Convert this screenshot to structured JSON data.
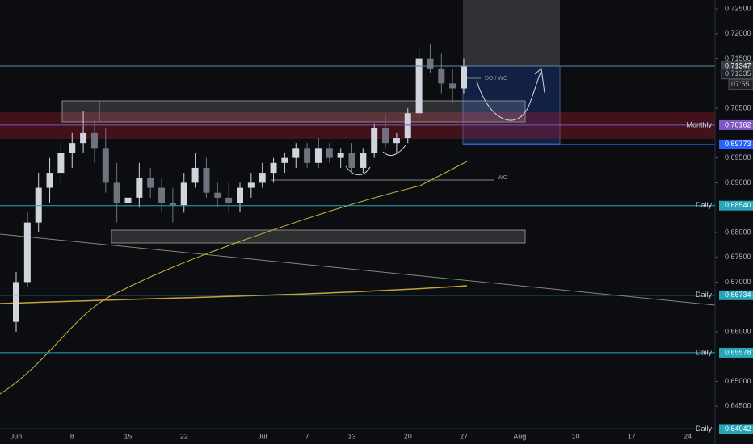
{
  "chart_data": {
    "type": "candlestick",
    "categories": [
      "Jun",
      null,
      null,
      null,
      null,
      "8",
      null,
      null,
      null,
      null,
      "15",
      null,
      null,
      null,
      null,
      "22",
      null,
      null,
      null,
      null,
      null,
      null,
      "Jul",
      null,
      null,
      null,
      "7",
      null,
      null,
      null,
      "13",
      null,
      null,
      null,
      null,
      "20",
      null,
      null,
      null,
      null,
      "27",
      null,
      null,
      null,
      null,
      "Aug",
      null,
      null,
      null,
      null,
      "10",
      null,
      null,
      null,
      null,
      "17",
      null,
      null,
      null,
      null,
      "24",
      null
    ],
    "open": [
      0.662,
      0.67,
      0.682,
      0.689,
      0.692,
      0.696,
      0.698,
      0.7,
      0.697,
      0.69,
      0.686,
      0.687,
      0.691,
      0.689,
      0.686,
      0.6855,
      0.69,
      0.693,
      0.688,
      0.687,
      0.686,
      0.689,
      0.69,
      0.692,
      0.694,
      0.695,
      0.697,
      0.694,
      0.697,
      0.695,
      0.696,
      0.693,
      0.696,
      0.701,
      0.698,
      0.699,
      0.704,
      0.715,
      0.713,
      0.71,
      0.709,
      null,
      null,
      null,
      null,
      null,
      null,
      null,
      null,
      null,
      null,
      null,
      null,
      null,
      null,
      null,
      null,
      null,
      null,
      null,
      null,
      null
    ],
    "high": [
      0.672,
      0.684,
      0.692,
      0.695,
      0.698,
      0.7,
      0.7045,
      0.7025,
      0.701,
      0.694,
      0.689,
      0.694,
      0.693,
      0.691,
      0.689,
      0.692,
      0.696,
      0.695,
      0.69,
      0.69,
      0.69,
      0.692,
      0.694,
      0.695,
      0.696,
      0.698,
      0.698,
      0.699,
      0.698,
      0.697,
      0.698,
      0.697,
      0.702,
      0.7035,
      0.7,
      0.705,
      0.717,
      0.718,
      0.716,
      0.713,
      0.715,
      null,
      null,
      null,
      null,
      null,
      null,
      null,
      null,
      null,
      null,
      null,
      null,
      null,
      null,
      null,
      null,
      null,
      null,
      null,
      null,
      null
    ],
    "low": [
      0.66,
      0.669,
      0.68,
      0.686,
      0.69,
      0.693,
      0.696,
      0.694,
      0.688,
      0.682,
      0.6775,
      0.685,
      0.687,
      0.684,
      0.682,
      0.684,
      0.689,
      0.687,
      0.685,
      0.684,
      0.684,
      0.687,
      0.689,
      0.69,
      0.692,
      0.693,
      0.693,
      0.693,
      0.694,
      0.693,
      0.692,
      0.692,
      0.695,
      0.697,
      0.696,
      0.698,
      0.703,
      0.712,
      0.708,
      0.706,
      0.708,
      null,
      null,
      null,
      null,
      null,
      null,
      null,
      null,
      null,
      null,
      null,
      null,
      null,
      null,
      null,
      null,
      null,
      null,
      null,
      null,
      null
    ],
    "close": [
      0.67,
      0.682,
      0.689,
      0.692,
      0.696,
      0.698,
      0.7,
      0.697,
      0.69,
      0.686,
      0.687,
      0.691,
      0.689,
      0.686,
      0.6855,
      0.69,
      0.693,
      0.688,
      0.687,
      0.686,
      0.689,
      0.69,
      0.692,
      0.694,
      0.695,
      0.697,
      0.694,
      0.697,
      0.695,
      0.696,
      0.693,
      0.696,
      0.701,
      0.698,
      0.699,
      0.704,
      0.715,
      0.713,
      0.71,
      0.709,
      0.71347,
      null,
      null,
      null,
      null,
      null,
      null,
      null,
      null,
      null,
      null,
      null,
      null,
      null,
      null,
      null,
      null,
      null,
      null,
      null,
      null,
      null
    ],
    "up_color": "#d1d4dc",
    "down_color": "#6f7380",
    "ylim": [
      0.6374,
      0.7268
    ],
    "yticks": [
      {
        "value": 0.725,
        "label": "0.72500"
      },
      {
        "value": 0.72,
        "label": "0.72000"
      },
      {
        "value": 0.715,
        "label": "0.71500"
      },
      {
        "value": 0.705,
        "label": "0.70500"
      },
      {
        "value": 0.695,
        "label": "0.69500"
      },
      {
        "value": 0.69,
        "label": "0.69000"
      },
      {
        "value": 0.68,
        "label": "0.68000"
      },
      {
        "value": 0.675,
        "label": "0.67500"
      },
      {
        "value": 0.67,
        "label": "0.67000"
      },
      {
        "value": 0.66,
        "label": "0.66000"
      },
      {
        "value": 0.65,
        "label": "0.65000"
      },
      {
        "value": 0.645,
        "label": "0.64500"
      }
    ],
    "current_price": {
      "value": 0.71347,
      "label": "0.71347"
    },
    "bid_price": {
      "value": 0.71335,
      "label": "0.71335"
    },
    "countdown": "07:55",
    "zone_price": {
      "value": 0.69773,
      "label": "0.69773"
    },
    "levels": [
      {
        "name": "Monthly",
        "value": 0.70162,
        "label": "0.70162",
        "color": "#7e57c2"
      },
      {
        "name": "Daily",
        "value": 0.6854,
        "label": "0.68540",
        "color": "#26a6b8"
      },
      {
        "name": "Daily",
        "value": 0.66734,
        "label": "0.66734",
        "color": "#26a6b8"
      },
      {
        "name": "Daily",
        "value": 0.65578,
        "label": "0.65578",
        "color": "#26a6b8"
      },
      {
        "name": "Daily",
        "value": 0.64042,
        "label": "0.64042",
        "color": "#26a6b8"
      }
    ],
    "annotations": [
      "DO / WO",
      "WO"
    ]
  }
}
